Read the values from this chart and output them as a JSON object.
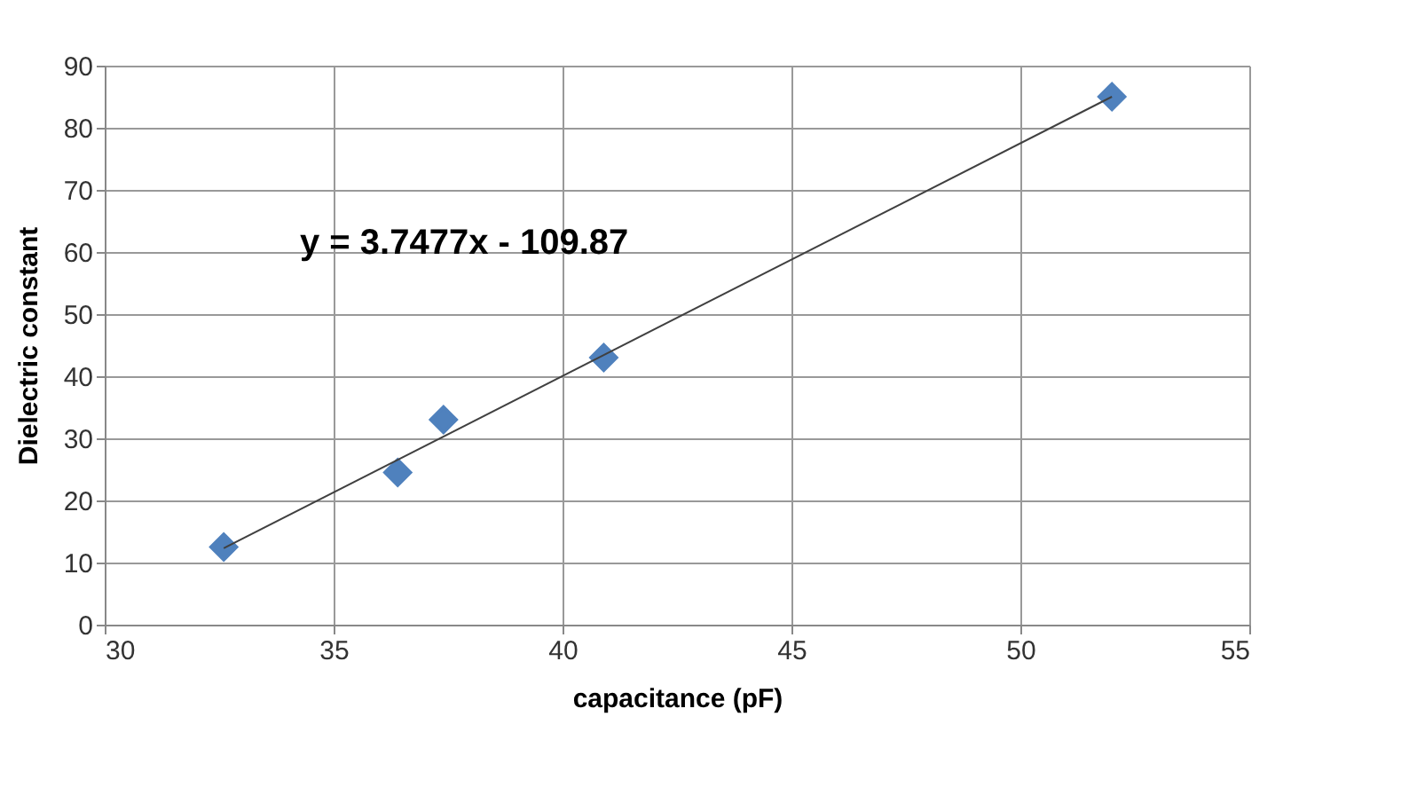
{
  "chart_data": {
    "type": "scatter",
    "xlabel": "capacitance (pF)",
    "ylabel": "Dielectric constant",
    "xlim": [
      30,
      55
    ],
    "xticks": [
      30,
      35,
      40,
      45,
      50,
      55
    ],
    "ylim": [
      0,
      90
    ],
    "yticks": [
      0,
      10,
      20,
      30,
      40,
      50,
      60,
      70,
      80,
      90
    ],
    "grid": true,
    "annotations": [
      "y = 3.7477x - 109.87"
    ],
    "series": [
      {
        "color": "#4f81bd",
        "marker": "diamond",
        "x": [
          32.6,
          36.4,
          37.4,
          40.9,
          52.0
        ],
        "values": [
          12.5,
          24.5,
          33,
          43,
          85
        ]
      },
      {
        "type": "line",
        "color": "#404040",
        "x": [
          32.6,
          52.0
        ],
        "values": [
          12.3,
          85.0
        ]
      }
    ]
  }
}
